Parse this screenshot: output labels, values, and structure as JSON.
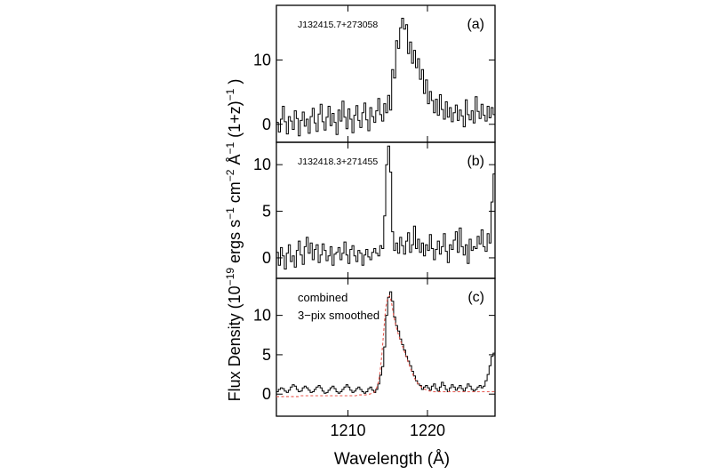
{
  "figure": {
    "ylabel": {
      "prefix": "Flux Density  (10",
      "exp1": "−19",
      "mid1": " ergs s",
      "exp2": "−1",
      "mid2": " cm",
      "exp3": "−2",
      "mid3": " Å",
      "exp4": "−1",
      "mid4": " (1+z)",
      "exp5": "−1",
      "suffix": " )"
    },
    "xlabel": "Wavelength  (Å)",
    "colors": {
      "line": "#000000",
      "model": "#e8584f"
    }
  },
  "chart_data": [
    {
      "type": "line",
      "panel_letter": "(a)",
      "object_name": "J132415.7+273058",
      "xlim": [
        1201,
        1228.5
      ],
      "ylim": [
        -2.8,
        18.5
      ],
      "xticks": [
        1210,
        1220
      ],
      "yticks": [
        0,
        10
      ],
      "x_start": 1201,
      "x_step": 0.25,
      "series": [
        {
          "role": "observed",
          "values": [
            0.3,
            -1.2,
            0.8,
            2.8,
            0.4,
            -1.5,
            1.2,
            0.5,
            -0.8,
            2.1,
            0.9,
            -1.8,
            0.6,
            1.9,
            -0.3,
            0.8,
            -1.4,
            1.2,
            2.5,
            0.2,
            -1.1,
            1.6,
            3.1,
            0.4,
            -0.9,
            1.1,
            2.8,
            -0.2,
            1.7,
            0.3,
            -1.6,
            2.2,
            0.5,
            3.6,
            1.1,
            -0.7,
            2.4,
            0.8,
            -1.3,
            1.4,
            2.9,
            0.6,
            -0.5,
            1.8,
            3.3,
            0.7,
            -1.0,
            2.6,
            1.2,
            0.3,
            2.1,
            4.0,
            1.5,
            0.5,
            3.2,
            1.8,
            4.5,
            2.2,
            8.5,
            7.2,
            13.0,
            11.8,
            15.0,
            16.5,
            14.8,
            15.5,
            11.0,
            12.8,
            9.5,
            11.5,
            8.8,
            10.2,
            7.0,
            8.5,
            4.8,
            6.9,
            3.2,
            5.1,
            3.7,
            1.8,
            3.9,
            1.4,
            4.6,
            2.3,
            0.8,
            3.5,
            1.1,
            2.6,
            0.4,
            1.8,
            3.0,
            0.6,
            2.2,
            1.3,
            -0.4,
            3.8,
            1.5,
            0.7,
            2.1,
            0.2,
            4.3,
            2.0,
            0.9,
            3.1,
            1.4,
            0.5,
            2.8,
            1.0,
            2.6,
            1.5
          ]
        }
      ]
    },
    {
      "type": "line",
      "panel_letter": "(b)",
      "object_name": "J132418.3+271455",
      "xlim": [
        1201,
        1228.5
      ],
      "ylim": [
        -2.2,
        12.4
      ],
      "xticks": [
        1210,
        1220
      ],
      "yticks": [
        0,
        5,
        10
      ],
      "x_start": 1201,
      "x_step": 0.25,
      "series": [
        {
          "role": "observed",
          "values": [
            0.6,
            -0.8,
            1.1,
            0.2,
            -1.2,
            0.5,
            1.4,
            -0.4,
            0.2,
            -1.0,
            0.8,
            1.8,
            0.3,
            -0.7,
            1.2,
            2.2,
            0.5,
            1.6,
            -0.2,
            0.9,
            1.4,
            -0.5,
            0.3,
            1.5,
            0.8,
            -0.3,
            0.2,
            1.2,
            -0.8,
            0.4,
            0.6,
            1.1,
            -0.2,
            0.5,
            1.7,
            0.3,
            -0.6,
            0.9,
            1.3,
            0.2,
            -0.4,
            0.8,
            0.5,
            -0.8,
            0.3,
            0.9,
            0.1,
            -0.2,
            0.6,
            1.0,
            0.5,
            0.2,
            1.3,
            1.0,
            4.5,
            10.0,
            12.0,
            9.2,
            2.8,
            0.8,
            1.6,
            0.5,
            2.2,
            1.3,
            0.4,
            1.8,
            2.7,
            0.6,
            1.4,
            3.4,
            1.0,
            2.0,
            0.6,
            1.6,
            0.2,
            1.4,
            0.8,
            2.5,
            1.0,
            -0.2,
            0.9,
            1.8,
            0.4,
            1.2,
            2.6,
            0.7,
            -0.5,
            1.4,
            0.9,
            1.9,
            2.8,
            0.6,
            3.2,
            1.2,
            0.3,
            1.4,
            -0.6,
            2.0,
            0.8,
            1.2,
            1.0,
            2.3,
            1.5,
            3.0,
            1.2,
            0.7,
            2.6,
            1.6,
            6.0,
            9.0,
            7.5
          ]
        }
      ]
    },
    {
      "type": "line",
      "panel_letter": "(c)",
      "notes": [
        "combined",
        "3−pix smoothed"
      ],
      "xlim": [
        1201,
        1228.5
      ],
      "ylim": [
        -2.8,
        14.7
      ],
      "xticks": [
        1210,
        1220
      ],
      "xticklabels": [
        "1210",
        "1220"
      ],
      "yticks": [
        0,
        5,
        10
      ],
      "x_start": 1201,
      "x_step": 0.25,
      "series": [
        {
          "role": "observed",
          "values": [
            0.3,
            0.6,
            0.8,
            0.7,
            0.4,
            0.2,
            0.5,
            0.9,
            1.2,
            1.0,
            0.6,
            0.3,
            0.4,
            0.8,
            1.0,
            0.8,
            0.5,
            0.2,
            0.3,
            0.6,
            0.9,
            1.1,
            0.8,
            0.4,
            0.1,
            0.2,
            0.5,
            0.8,
            1.0,
            0.7,
            0.3,
            0.1,
            0.3,
            0.6,
            0.9,
            1.2,
            0.9,
            0.5,
            0.2,
            0.4,
            0.7,
            0.9,
            0.6,
            0.3,
            0.1,
            0.3,
            0.7,
            0.9,
            0.5,
            0.2,
            0.6,
            1.3,
            2.4,
            3.5,
            6.0,
            10.0,
            12.3,
            13.0,
            11.8,
            9.8,
            8.7,
            8.0,
            7.0,
            6.3,
            5.6,
            4.8,
            4.2,
            3.6,
            2.9,
            2.3,
            1.7,
            1.3,
            1.1,
            0.6,
            0.9,
            1.1,
            0.8,
            0.5,
            1.0,
            1.3,
            0.7,
            0.4,
            0.9,
            1.5,
            1.1,
            0.6,
            0.3,
            0.8,
            1.2,
            0.9,
            0.5,
            0.8,
            1.1,
            0.7,
            0.4,
            0.8,
            1.3,
            1.0,
            0.6,
            0.4,
            0.6,
            0.9,
            1.1,
            0.8,
            1.0,
            1.7,
            2.5,
            3.6,
            4.8,
            5.2,
            4.4
          ]
        },
        {
          "role": "model",
          "values": [
            -0.3,
            -0.3,
            -0.3,
            -0.3,
            -0.3,
            -0.3,
            -0.3,
            -0.3,
            -0.3,
            -0.3,
            -0.3,
            -0.3,
            -0.2,
            -0.2,
            -0.2,
            -0.2,
            -0.2,
            -0.2,
            -0.2,
            -0.2,
            -0.2,
            -0.2,
            -0.2,
            -0.2,
            -0.2,
            -0.2,
            -0.2,
            -0.2,
            -0.2,
            -0.2,
            -0.2,
            -0.2,
            -0.2,
            -0.2,
            -0.2,
            -0.2,
            -0.2,
            -0.2,
            -0.2,
            -0.2,
            -0.2,
            -0.1,
            -0.1,
            -0.1,
            -0.1,
            -0.1,
            0.0,
            0.0,
            0.1,
            0.2,
            0.5,
            1.2,
            2.5,
            4.8,
            8.0,
            11.0,
            12.2,
            12.5,
            11.5,
            10.0,
            8.8,
            7.9,
            7.1,
            6.4,
            5.7,
            5.0,
            4.3,
            3.6,
            2.9,
            2.3,
            1.8,
            1.4,
            1.1,
            0.9,
            0.7,
            0.6,
            0.5,
            0.4,
            0.4,
            0.3,
            0.3,
            0.3,
            0.3,
            0.3,
            0.3,
            0.3,
            0.3,
            0.3,
            0.3,
            0.3,
            0.3,
            0.3,
            0.3,
            0.3,
            0.3,
            0.3,
            0.3,
            0.3,
            0.3,
            0.3,
            0.3,
            0.3,
            0.3,
            0.3,
            0.3,
            0.3,
            0.3,
            0.3,
            0.3,
            0.3,
            0.3
          ]
        }
      ]
    }
  ]
}
